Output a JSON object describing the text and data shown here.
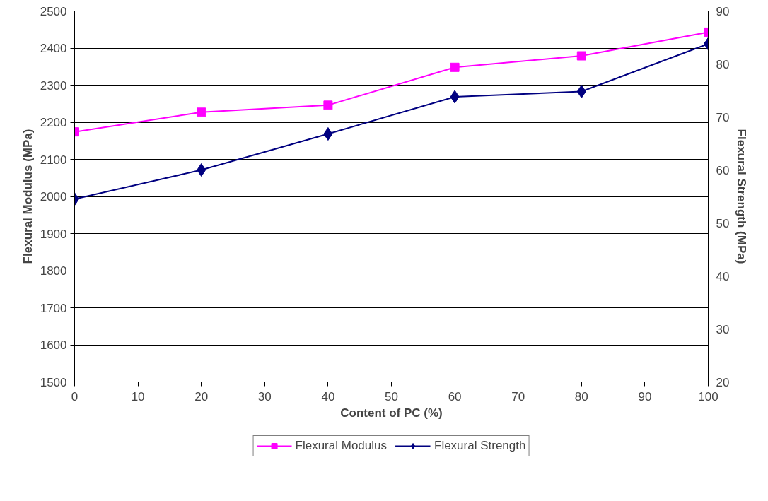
{
  "chart_data": {
    "type": "line",
    "xlabel": "Content of PC (%)",
    "ylabel": "Flexural Modulus (MPa)",
    "y2label": "Flexural Strength (MPa)",
    "x": [
      0,
      20,
      40,
      60,
      80,
      100
    ],
    "series": [
      {
        "name": "Flexural Modulus",
        "color": "#ff00ff",
        "marker": "square",
        "values": [
          2174,
          2227,
          2246,
          2348,
          2379,
          2443
        ]
      },
      {
        "name": "Flexural Strength",
        "color": "#000080",
        "marker": "diamond",
        "axis": "y2",
        "values": [
          54.5,
          60.0,
          66.8,
          73.8,
          74.8,
          83.8
        ]
      }
    ],
    "xlim": [
      0,
      100
    ],
    "xticks": [
      0,
      10,
      20,
      30,
      40,
      50,
      60,
      70,
      80,
      90,
      100
    ],
    "ylim": [
      1500,
      2500
    ],
    "yticks": [
      1500,
      1600,
      1700,
      1800,
      1900,
      2000,
      2100,
      2200,
      2300,
      2400,
      2500
    ],
    "y2lim": [
      20,
      90
    ],
    "y2ticks": [
      20,
      30,
      40,
      50,
      60,
      70,
      80,
      90
    ],
    "grid": "y",
    "legend": "bottom",
    "line_style": "solid"
  }
}
